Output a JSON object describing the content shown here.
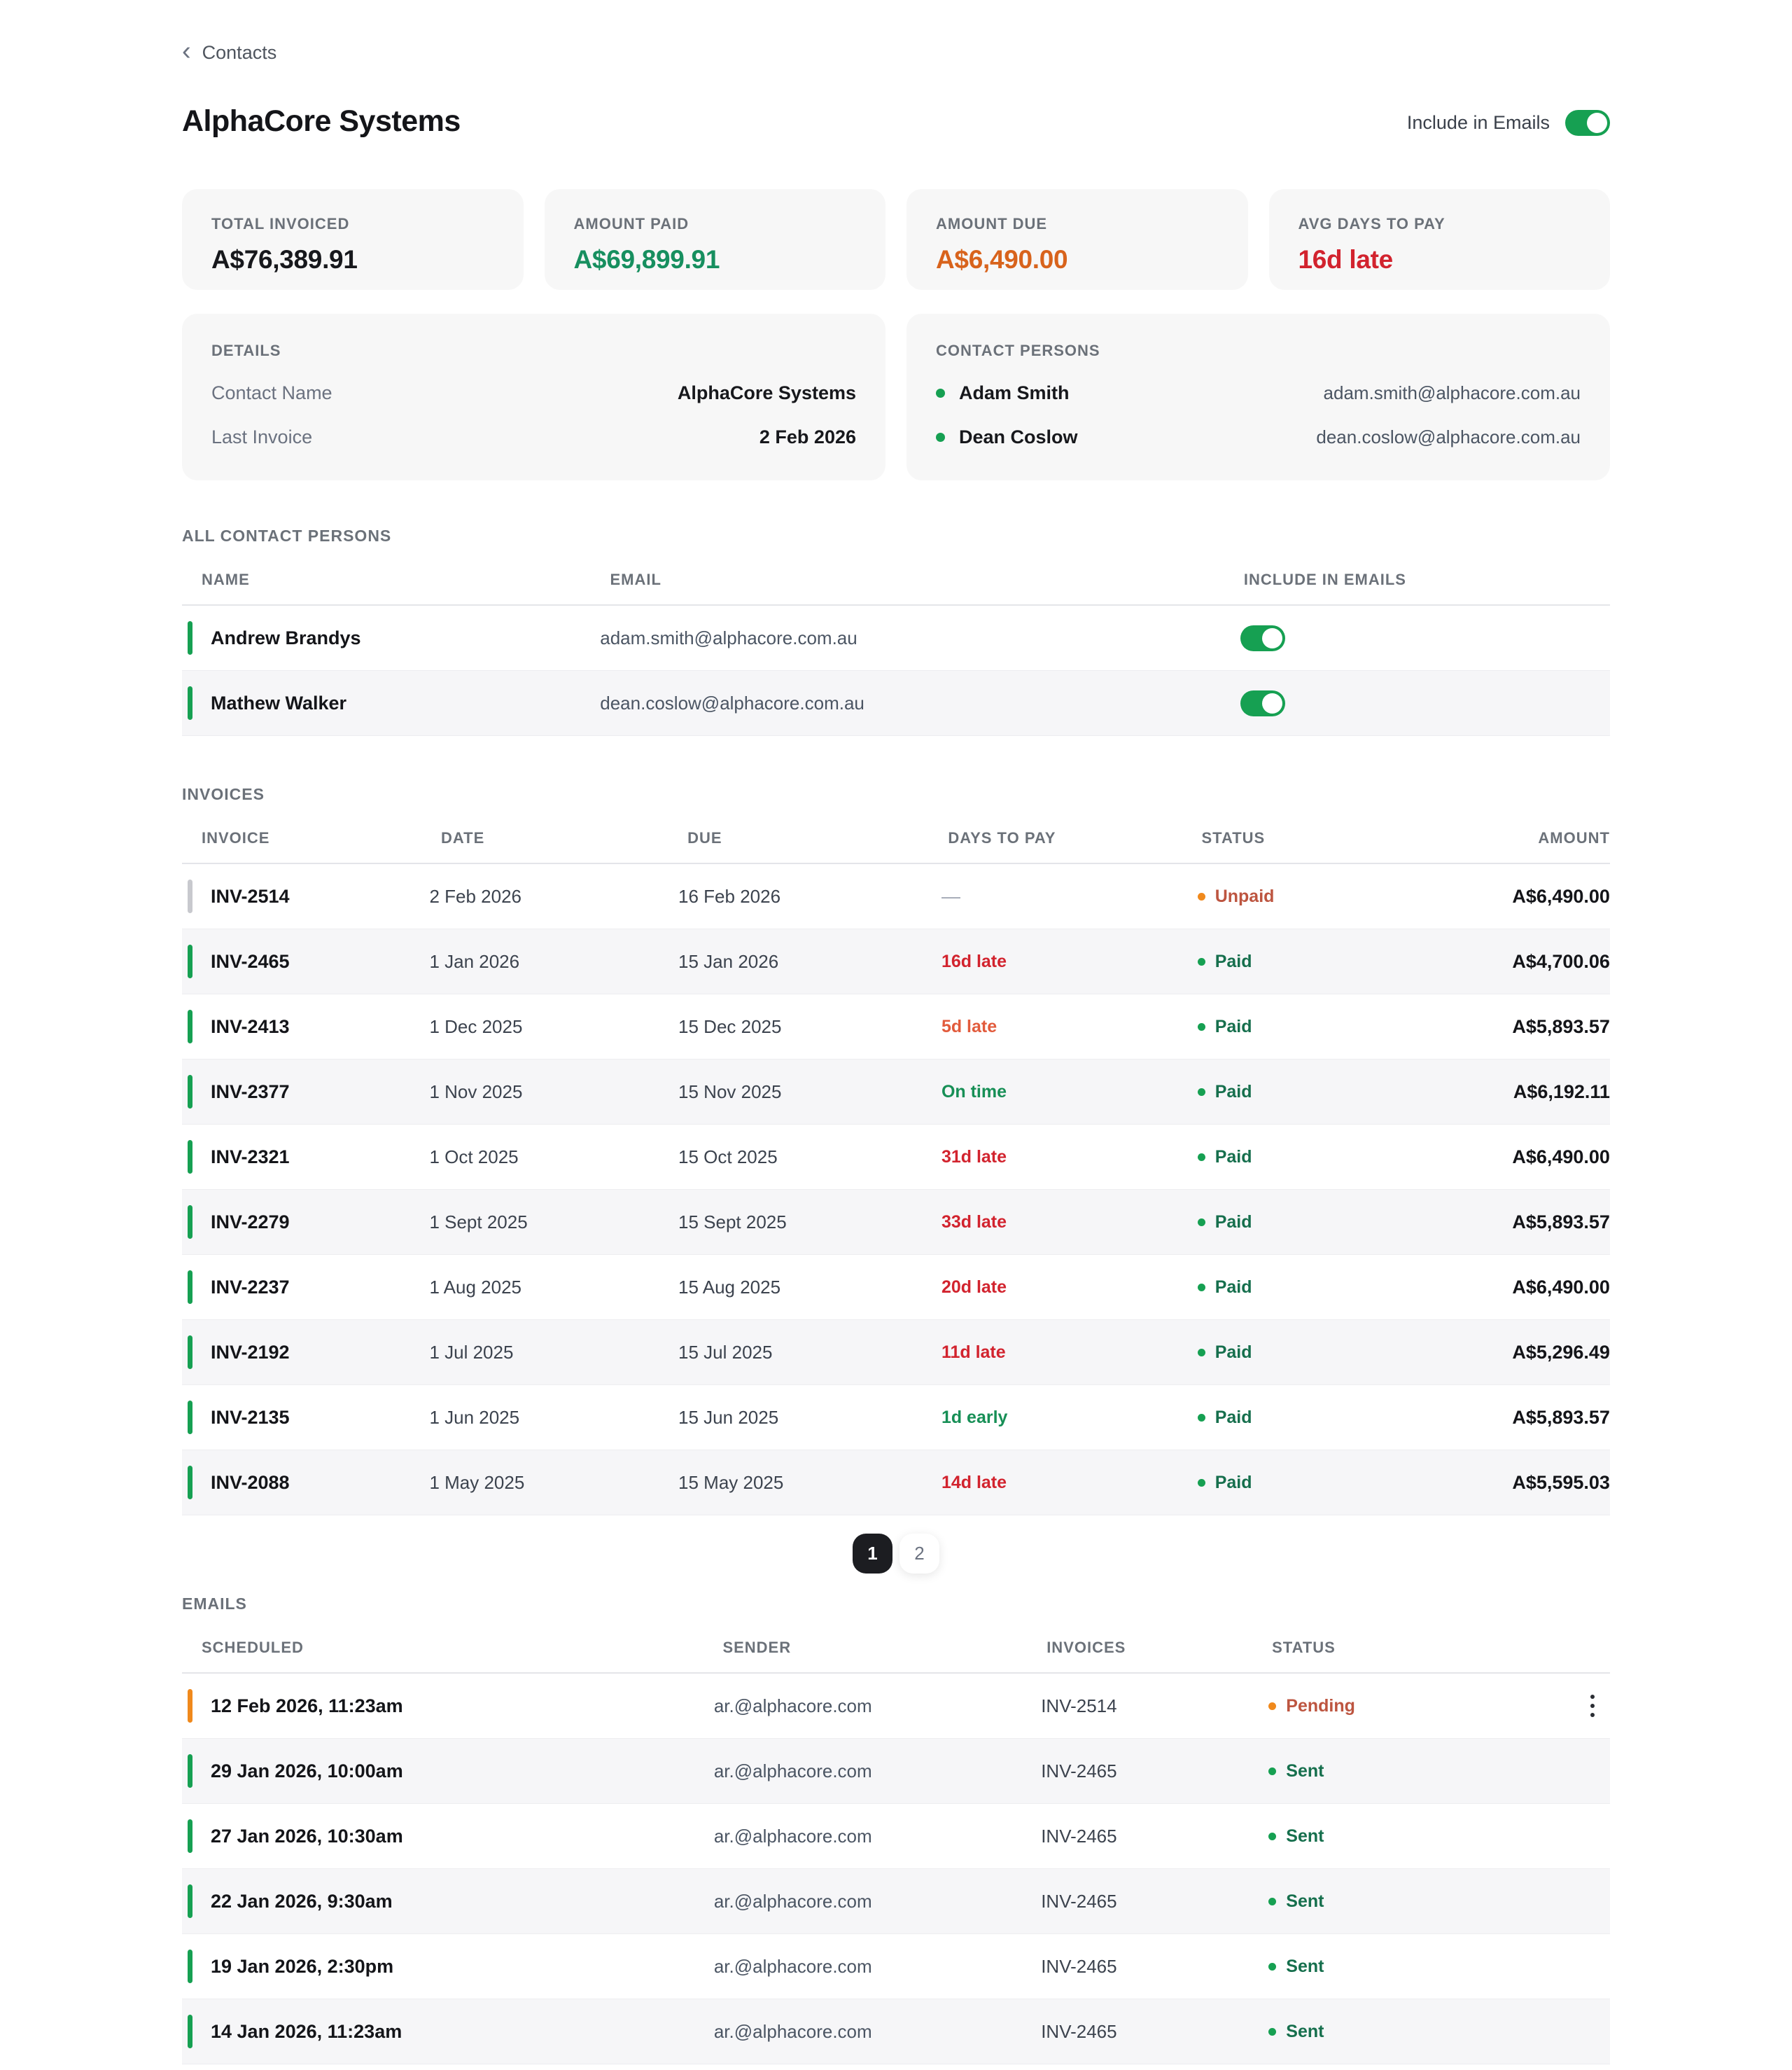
{
  "page": {
    "breadcrumb": "Contacts",
    "title": "AlphaCore Systems",
    "include_in_emails_label": "Include in Emails"
  },
  "accent_colors": {
    "green": "#16a052",
    "orange": "#f0891c",
    "red": "#d2232e",
    "amount_due_orange": "#d8631c"
  },
  "stats": [
    {
      "label": "TOTAL INVOICED",
      "value": "A$76,389.91"
    },
    {
      "label": "AMOUNT PAID",
      "value": "A$69,899.91"
    },
    {
      "label": "AMOUNT DUE",
      "value": "A$6,490.00"
    },
    {
      "label": "AVG DAYS TO PAY",
      "value": "16d late"
    }
  ],
  "details": {
    "title": "DETAILS",
    "rows": [
      {
        "label": "Contact Name",
        "value": "AlphaCore Systems"
      },
      {
        "label": "Last Invoice",
        "value": "2 Feb 2026"
      }
    ]
  },
  "contact_persons": {
    "title": "CONTACT PERSONS",
    "rows": [
      {
        "name": "Adam Smith",
        "email": "adam.smith@alphacore.com.au"
      },
      {
        "name": "Dean Coslow",
        "email": "dean.coslow@alphacore.com.au"
      }
    ]
  },
  "all_contact_persons": {
    "title": "ALL CONTACT PERSONS",
    "columns": {
      "name": "NAME",
      "email": "EMAIL",
      "include": "INCLUDE IN EMAILS"
    },
    "rows": [
      {
        "name": "Andrew Brandys",
        "email": "adam.smith@alphacore.com.au",
        "include_in_emails": "on"
      },
      {
        "name": "Mathew Walker",
        "email": "dean.coslow@alphacore.com.au",
        "include_in_emails": "on"
      }
    ]
  },
  "invoices": {
    "title": "INVOICES",
    "columns": {
      "invoice": "INVOICE",
      "date": "DATE",
      "due": "DUE",
      "days": "DAYS TO PAY",
      "status": "STATUS",
      "amount": "AMOUNT"
    },
    "rows": [
      {
        "invoice": "INV-2514",
        "date": "2 Feb 2026",
        "due": "16 Feb 2026",
        "days_to_pay": "—",
        "status": "Unpaid",
        "amount": "A$6,490.00"
      },
      {
        "invoice": "INV-2465",
        "date": "1 Jan 2026",
        "due": "15 Jan 2026",
        "days_to_pay": "16d late",
        "status": "Paid",
        "amount": "A$4,700.06"
      },
      {
        "invoice": "INV-2413",
        "date": "1 Dec 2025",
        "due": "15 Dec 2025",
        "days_to_pay": "5d late",
        "status": "Paid",
        "amount": "A$5,893.57"
      },
      {
        "invoice": "INV-2377",
        "date": "1 Nov 2025",
        "due": "15 Nov 2025",
        "days_to_pay": "On time",
        "status": "Paid",
        "amount": "A$6,192.11"
      },
      {
        "invoice": "INV-2321",
        "date": "1 Oct 2025",
        "due": "15 Oct 2025",
        "days_to_pay": "31d late",
        "status": "Paid",
        "amount": "A$6,490.00"
      },
      {
        "invoice": "INV-2279",
        "date": "1 Sept 2025",
        "due": "15 Sept 2025",
        "days_to_pay": "33d late",
        "status": "Paid",
        "amount": "A$5,893.57"
      },
      {
        "invoice": "INV-2237",
        "date": "1 Aug 2025",
        "due": "15 Aug 2025",
        "days_to_pay": "20d late",
        "status": "Paid",
        "amount": "A$6,490.00"
      },
      {
        "invoice": "INV-2192",
        "date": "1 Jul 2025",
        "due": "15 Jul 2025",
        "days_to_pay": "11d late",
        "status": "Paid",
        "amount": "A$5,296.49"
      },
      {
        "invoice": "INV-2135",
        "date": "1 Jun 2025",
        "due": "15 Jun 2025",
        "days_to_pay": "1d early",
        "status": "Paid",
        "amount": "A$5,893.57"
      },
      {
        "invoice": "INV-2088",
        "date": "1 May 2025",
        "due": "15 May 2025",
        "days_to_pay": "14d late",
        "status": "Paid",
        "amount": "A$5,595.03"
      }
    ],
    "pagination": {
      "page1": "1",
      "page2": "2"
    }
  },
  "emails": {
    "title": "EMAILS",
    "columns": {
      "scheduled": "SCHEDULED",
      "sender": "SENDER",
      "invoices": "INVOICES",
      "status": "STATUS"
    },
    "rows": [
      {
        "scheduled": "12 Feb 2026, 11:23am",
        "sender": "ar.@alphacore.com",
        "invoice": "INV-2514",
        "status": "Pending"
      },
      {
        "scheduled": "29 Jan 2026, 10:00am",
        "sender": "ar.@alphacore.com",
        "invoice": "INV-2465",
        "status": "Sent"
      },
      {
        "scheduled": "27 Jan 2026, 10:30am",
        "sender": "ar.@alphacore.com",
        "invoice": "INV-2465",
        "status": "Sent"
      },
      {
        "scheduled": "22 Jan 2026, 9:30am",
        "sender": "ar.@alphacore.com",
        "invoice": "INV-2465",
        "status": "Sent"
      },
      {
        "scheduled": "19 Jan 2026, 2:30pm",
        "sender": "ar.@alphacore.com",
        "invoice": "INV-2465",
        "status": "Sent"
      },
      {
        "scheduled": "14 Jan 2026, 11:23am",
        "sender": "ar.@alphacore.com",
        "invoice": "INV-2465",
        "status": "Sent"
      }
    ]
  }
}
